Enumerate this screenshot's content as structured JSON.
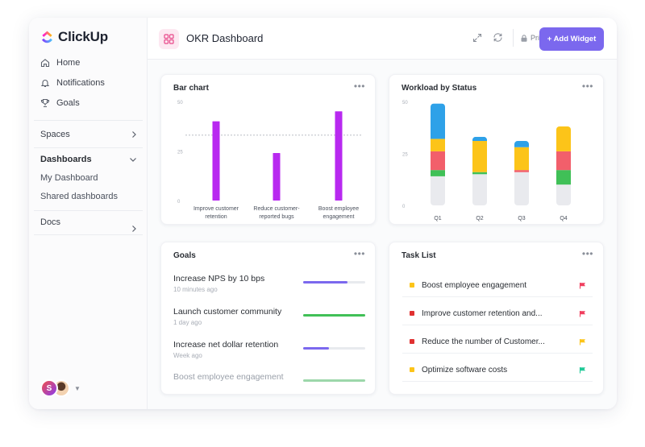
{
  "app": {
    "name": "ClickUp"
  },
  "sidebar": {
    "nav": [
      {
        "label": "Home",
        "icon": "home-icon"
      },
      {
        "label": "Notifications",
        "icon": "bell-icon"
      },
      {
        "label": "Goals",
        "icon": "trophy-icon"
      }
    ],
    "spaces_label": "Spaces",
    "dashboards_label": "Dashboards",
    "dashboards_items": [
      "My Dashboard",
      "Shared dashboards"
    ],
    "docs_label": "Docs",
    "avatar_initial": "S"
  },
  "header": {
    "title": "OKR Dashboard",
    "privacy_label": "Private",
    "add_widget_label": "+ Add Widget"
  },
  "colors": {
    "accent": "#7b68ee",
    "bar": "#b829f0",
    "blue": "#2ea1e8",
    "yellow": "#fcc419",
    "red": "#f25f6b",
    "green": "#40c057",
    "gray": "#e9eaee"
  },
  "bar_card": {
    "title": "Bar chart"
  },
  "workload_card": {
    "title": "Workload by Status"
  },
  "goals_card": {
    "title": "Goals"
  },
  "tasks_card": {
    "title": "Task List"
  },
  "chart_data": [
    {
      "type": "bar",
      "title": "Bar chart",
      "categories": [
        [
          "Improve customer",
          "retention"
        ],
        [
          "Reduce customer-",
          "reported bugs"
        ],
        [
          "Boost employee",
          "engagement"
        ]
      ],
      "values": [
        40,
        24,
        45
      ],
      "reference_line": 33,
      "ylim": [
        0,
        50
      ],
      "yticks": [
        0,
        25,
        50
      ]
    },
    {
      "type": "bar",
      "stacked": true,
      "title": "Workload by Status",
      "categories": [
        "Q1",
        "Q2",
        "Q3",
        "Q4"
      ],
      "ylim": [
        0,
        50
      ],
      "yticks": [
        0,
        25,
        50
      ],
      "series": [
        {
          "color": "gray",
          "values": [
            14,
            15,
            16,
            10
          ]
        },
        {
          "color": "green",
          "values": [
            3,
            1,
            0,
            7
          ]
        },
        {
          "color": "red",
          "values": [
            9,
            0,
            1,
            9
          ]
        },
        {
          "color": "yellow",
          "values": [
            6,
            15,
            11,
            12
          ]
        },
        {
          "color": "blue",
          "values": [
            17,
            2,
            3,
            0
          ]
        }
      ]
    }
  ],
  "goals": [
    {
      "name": "Increase NPS by 10 bps",
      "time": "10 minutes ago",
      "progress": 0.72,
      "color": "#7b68ee"
    },
    {
      "name": "Launch customer community",
      "time": "1 day ago",
      "progress": 1.0,
      "color": "#40c057"
    },
    {
      "name": "Increase net dollar retention",
      "time": "Week ago",
      "progress": 0.41,
      "color": "#7b68ee"
    },
    {
      "name": "Boost employee engagement",
      "time": "",
      "progress": 1.0,
      "color": "#40c057"
    }
  ],
  "tasks": [
    {
      "name": "Boost employee engagement",
      "dot": "#fcc419",
      "flag": "#f03e5e"
    },
    {
      "name": "Improve customer retention and...",
      "dot": "#e03131",
      "flag": "#f03e5e"
    },
    {
      "name": "Reduce the number of Customer...",
      "dot": "#e03131",
      "flag": "#fcc419"
    },
    {
      "name": "Optimize software costs",
      "dot": "#fcc419",
      "flag": "#20c997"
    }
  ]
}
